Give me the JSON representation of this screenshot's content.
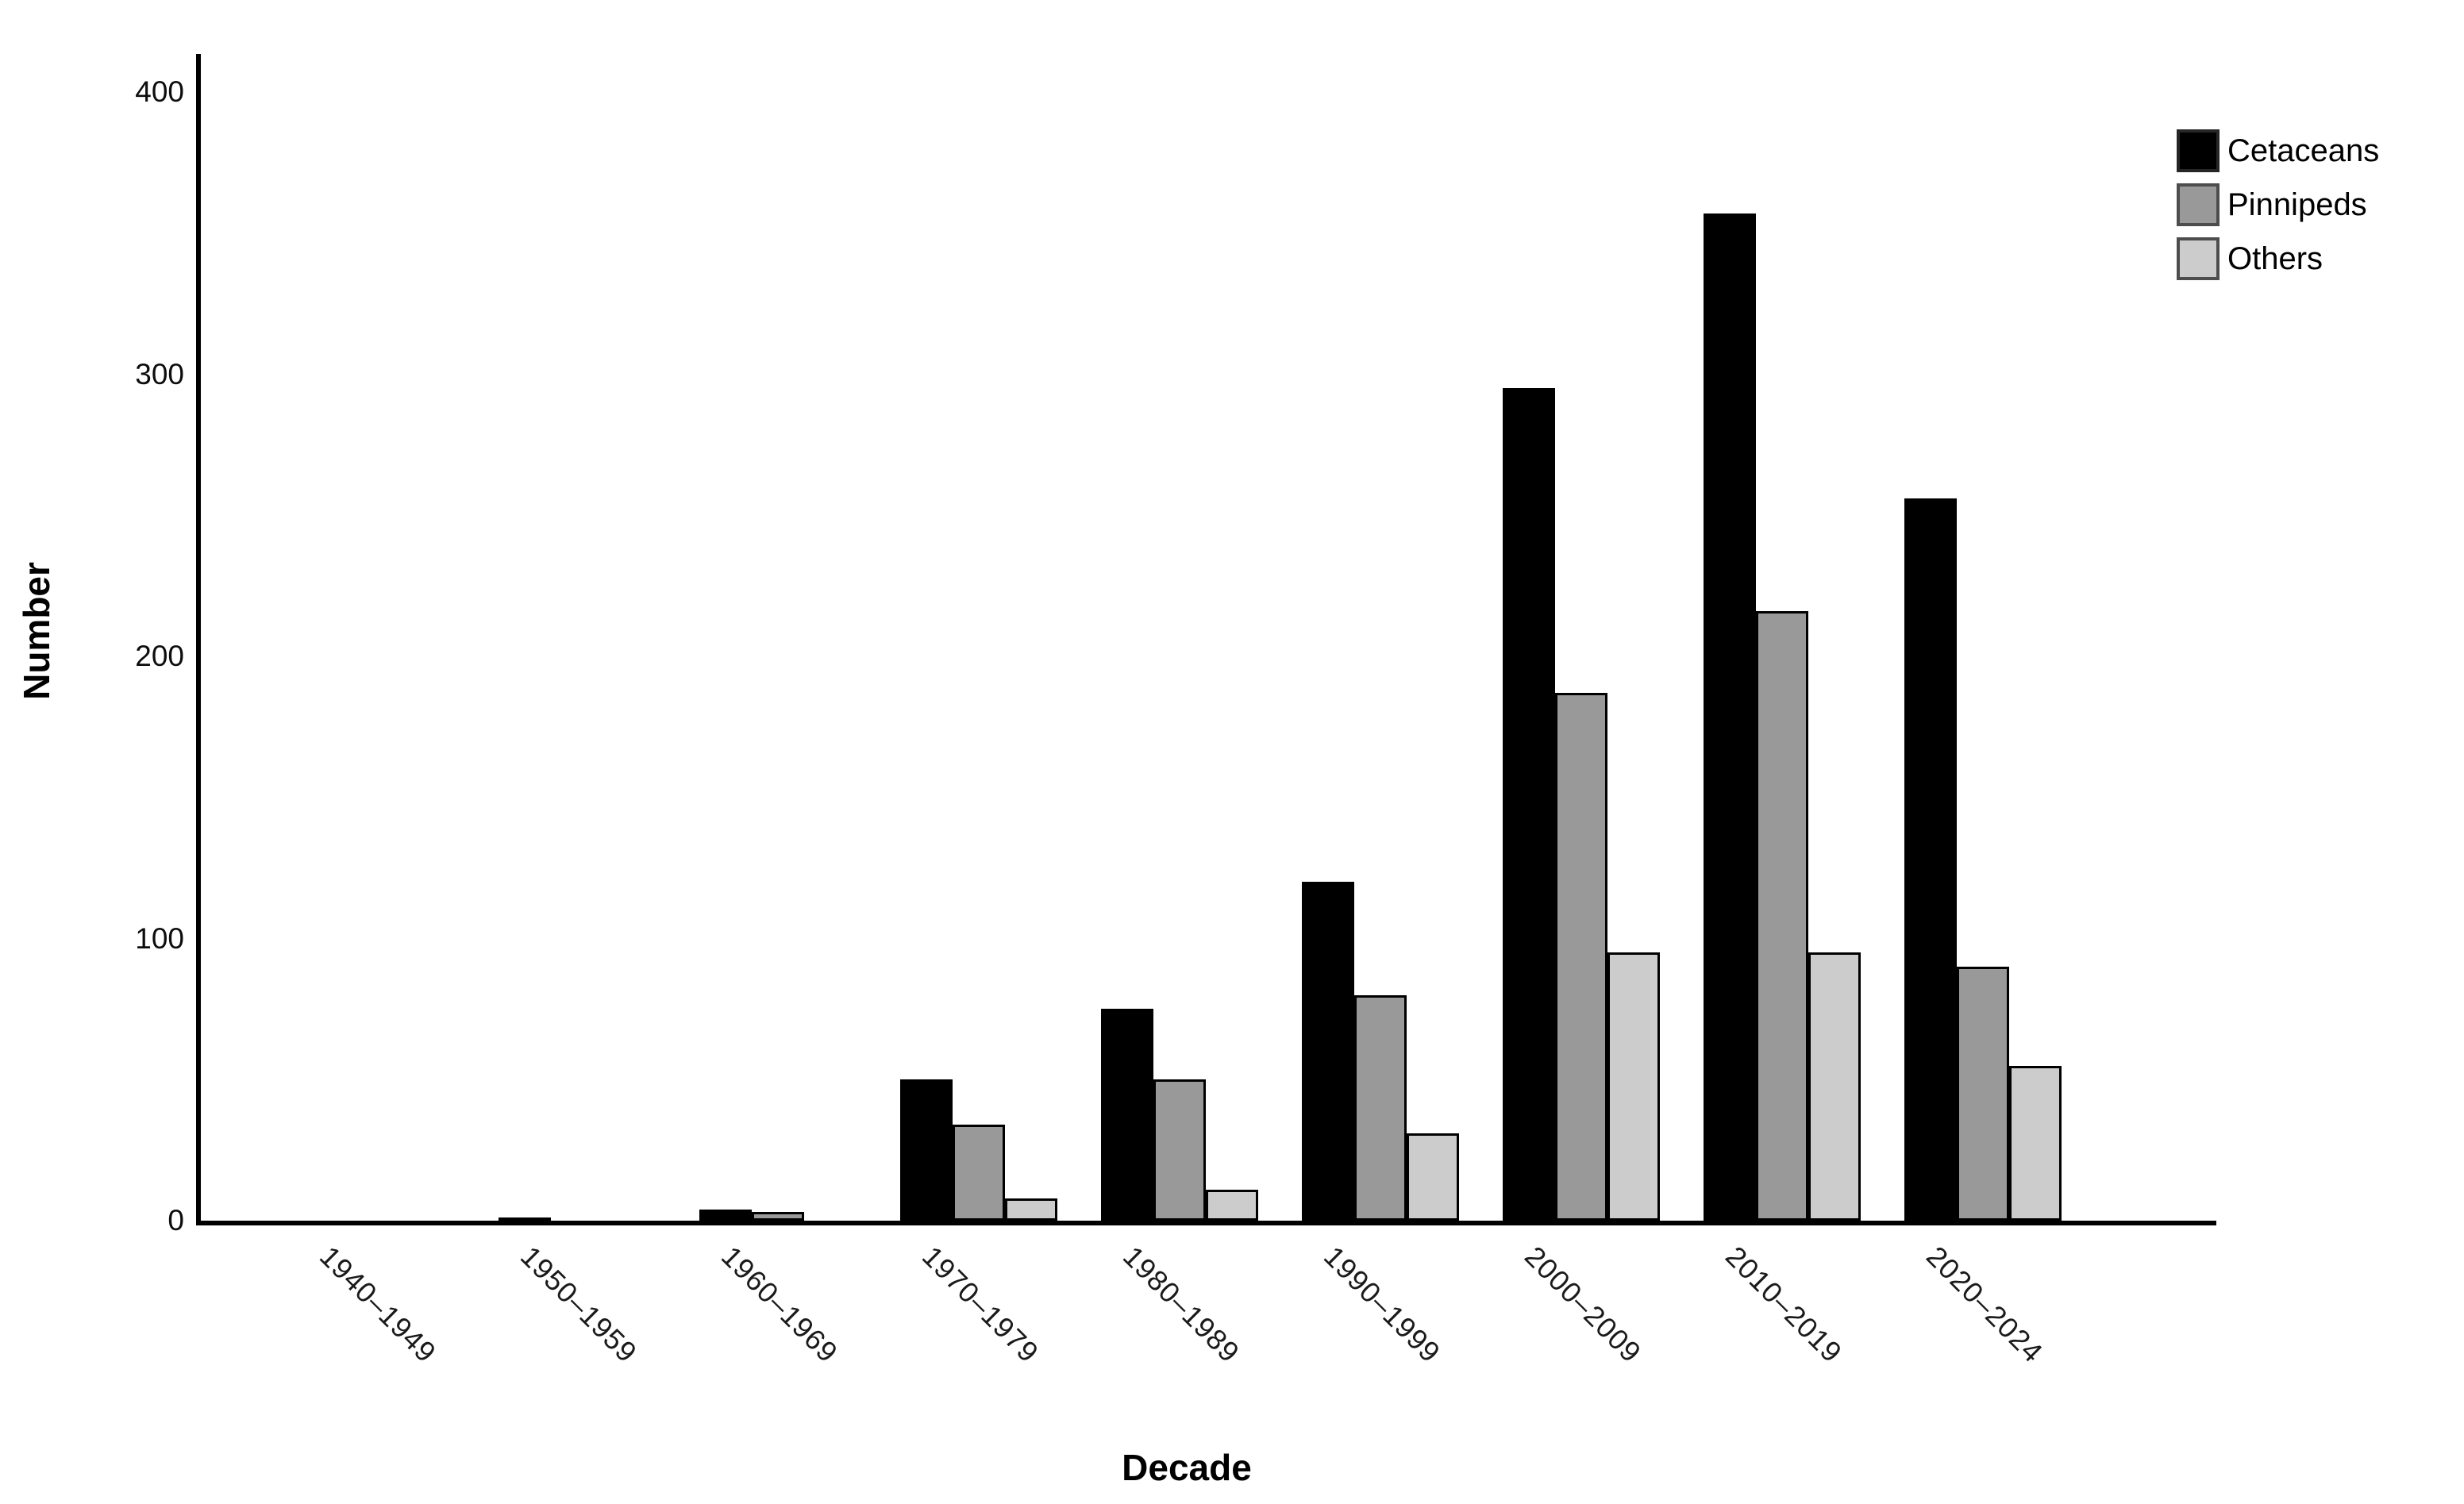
{
  "chart_data": {
    "type": "bar",
    "title": "",
    "xlabel": "Decade",
    "ylabel": "Number",
    "categories": [
      "1940–1949",
      "1950–1959",
      "1960–1969",
      "1970–1979",
      "1980–1989",
      "1990–1999",
      "2000–2009",
      "2010–2019",
      "2020–2024"
    ],
    "series": [
      {
        "name": "Cetaceans",
        "color": "#000000",
        "border": "#000000",
        "values": [
          0,
          1,
          4,
          50,
          75,
          120,
          295,
          357,
          256
        ]
      },
      {
        "name": "Pinnipeds",
        "color": "#999999",
        "border": "#000000",
        "values": [
          0,
          0,
          3,
          34,
          50,
          80,
          187,
          216,
          90
        ]
      },
      {
        "name": "Others",
        "color": "#cccccc",
        "border": "#000000",
        "values": [
          0,
          0,
          0,
          8,
          11,
          31,
          95,
          95,
          55
        ]
      }
    ],
    "yticks": [
      0,
      100,
      200,
      300,
      400
    ],
    "ylim": [
      0,
      413
    ],
    "grid": false,
    "legend_position": "top-right"
  },
  "legend": {
    "items": [
      {
        "label": "Cetaceans",
        "swatch_color": "#000000",
        "swatch_border": "#262626"
      },
      {
        "label": "Pinnipeds",
        "swatch_color": "#999999",
        "swatch_border": "#4d4d4d"
      },
      {
        "label": "Others",
        "swatch_color": "#cccccc",
        "swatch_border": "#4d4d4d"
      }
    ]
  },
  "axes": {
    "x_title": "Decade",
    "y_title": "Number"
  }
}
